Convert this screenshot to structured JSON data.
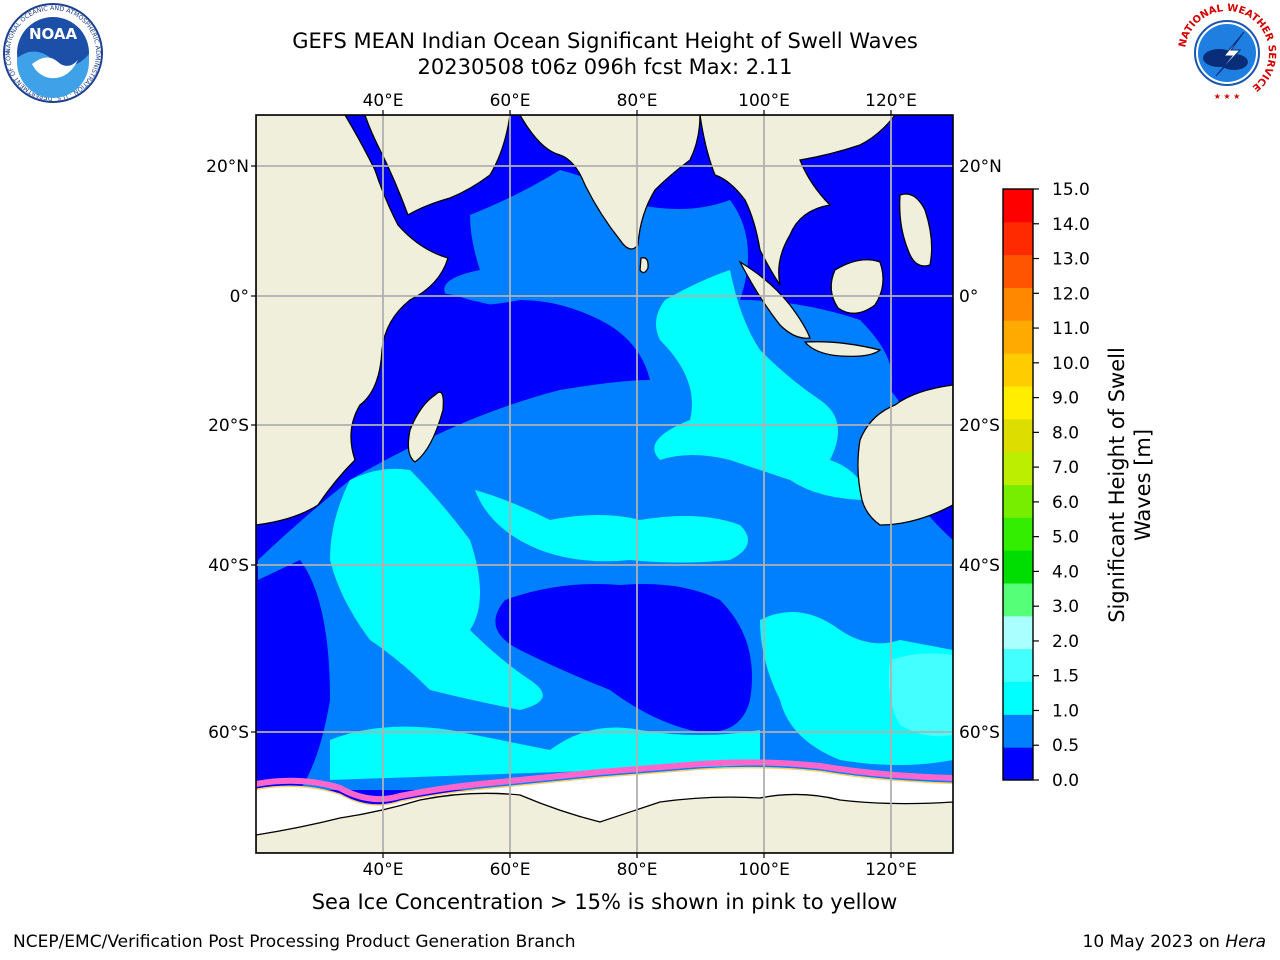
{
  "header": {
    "title_line1": "GEFS MEAN Indian Ocean Significant Height of Swell Waves",
    "title_line2": "20230508 t06z 096h fcst   Max: 2.11"
  },
  "logos": {
    "left": {
      "name": "noaa-logo",
      "text": "NOAA",
      "ring_text": "NATIONAL OCEANIC AND ATMOSPHERIC ADMINISTRATION · U.S. DEPARTMENT OF COMMERCE"
    },
    "right": {
      "name": "nws-logo",
      "ring_text": "NATIONAL WEATHER SERVICE"
    }
  },
  "map": {
    "lon_labels": [
      "40°E",
      "60°E",
      "80°E",
      "100°E",
      "120°E"
    ],
    "lat_labels_left": [
      "20°N",
      "0°",
      "20°S",
      "40°S",
      "60°S"
    ],
    "lat_labels_right": [
      "20°N",
      "0°",
      "20°S",
      "40°S",
      "60°S"
    ],
    "colors": {
      "land": "#efefdc",
      "ocean_low": "#0000ff",
      "ocean_mid": "#0080ff",
      "ocean_high": "#00ffff",
      "ocean_peak": "#44ffff",
      "ice": "#ffffff",
      "ice_edge": "#ff66cc",
      "grid": "#b0b0b0"
    }
  },
  "colorbar": {
    "label_line1": "Significant Height of Swell",
    "label_line2": "Waves [m]",
    "ticks": [
      "0.0",
      "0.5",
      "1.0",
      "1.5",
      "2.0",
      "3.0",
      "4.0",
      "5.0",
      "6.0",
      "7.0",
      "8.0",
      "9.0",
      "10.0",
      "11.0",
      "12.0",
      "13.0",
      "14.0",
      "15.0"
    ],
    "colors": [
      "#0000ff",
      "#0080ff",
      "#00ffff",
      "#44ffff",
      "#aaffff",
      "#55ff77",
      "#00dd00",
      "#33ee00",
      "#77ee00",
      "#bbee00",
      "#dddd00",
      "#ffee00",
      "#ffcc00",
      "#ffaa00",
      "#ff8800",
      "#ff5500",
      "#ff2a00",
      "#ff0000"
    ]
  },
  "notes": {
    "ice_note": "Sea Ice Concentration > 15% is shown in pink to yellow"
  },
  "footer": {
    "left": "NCEP/EMC/Verification Post Processing Product Generation Branch",
    "right_prefix": "10 May 2023 on ",
    "right_host": "Hera"
  }
}
